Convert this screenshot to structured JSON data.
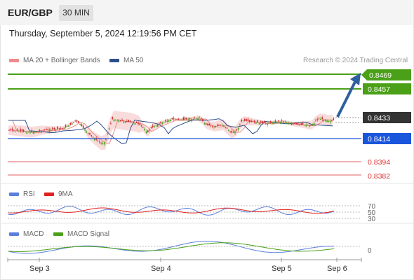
{
  "header": {
    "symbol": "EUR/GBP",
    "timeframe": "30 MIN"
  },
  "date_line": "Thursday, September 5, 2024 12:19:56 PM CET",
  "legend_main": [
    {
      "label": "MA 20 + Bollinger Bands",
      "color": "#f08a8a"
    },
    {
      "label": "MA 50",
      "color": "#2b4f8c"
    }
  ],
  "credit": "Research © 2024 Trading Central",
  "levels": [
    {
      "value": "0.8469",
      "kind": "target",
      "color": "#4aa017"
    },
    {
      "value": "0.8457",
      "kind": "target",
      "color": "#4aa017"
    },
    {
      "value": "0.8433",
      "kind": "last",
      "color": "#333333"
    },
    {
      "value": "0.8414",
      "kind": "pivot",
      "color": "#1a56db"
    },
    {
      "value": "0.8394",
      "kind": "support",
      "color": "#e06060"
    },
    {
      "value": "0.8382",
      "kind": "support",
      "color": "#e06060"
    }
  ],
  "rsi_panel": {
    "legend": [
      {
        "label": "RSI",
        "color": "#5b7fdb"
      },
      {
        "label": "9MA",
        "color": "#e02020"
      }
    ],
    "ticks": [
      "70",
      "50",
      "30"
    ]
  },
  "macd_panel": {
    "legend": [
      {
        "label": "MACD",
        "color": "#5b7fdb"
      },
      {
        "label": "MACD Signal",
        "color": "#4aa017"
      }
    ],
    "ticks": [
      "0"
    ]
  },
  "x_axis": [
    "Sep 3",
    "Sep 4",
    "Sep 5",
    "Sep 6"
  ],
  "colors": {
    "up": "#4aa017",
    "down": "#cc2a2a",
    "band": "#f7d6d6",
    "arrow": "#2f5f9e"
  }
}
